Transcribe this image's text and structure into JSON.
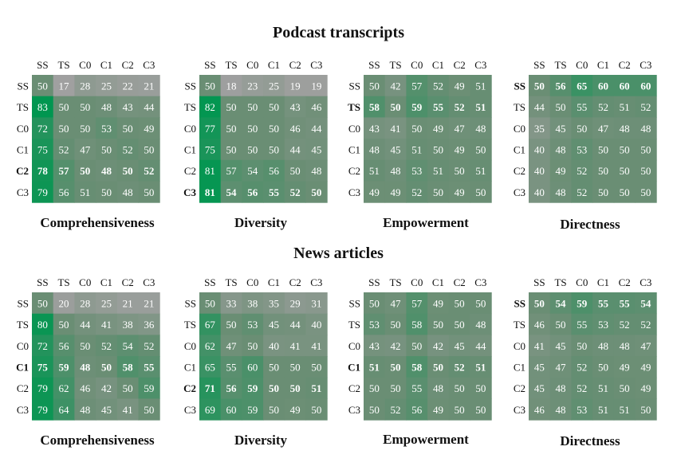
{
  "figure_title_top": "Podcast transcripts",
  "figure_title_bottom": "News articles",
  "chart_data": [
    {
      "type": "heatmap",
      "group": "Podcast transcripts",
      "title": "Comprehensiveness",
      "labels": [
        "SS",
        "TS",
        "C0",
        "C1",
        "C2",
        "C3"
      ],
      "values": [
        [
          50,
          17,
          28,
          25,
          22,
          21
        ],
        [
          83,
          50,
          50,
          48,
          43,
          44
        ],
        [
          72,
          50,
          50,
          53,
          50,
          49
        ],
        [
          75,
          52,
          47,
          50,
          52,
          50
        ],
        [
          78,
          57,
          50,
          48,
          50,
          52
        ],
        [
          79,
          56,
          51,
          50,
          48,
          50
        ]
      ],
      "bold_row": 4
    },
    {
      "type": "heatmap",
      "group": "Podcast transcripts",
      "title": "Diversity",
      "labels": [
        "SS",
        "TS",
        "C0",
        "C1",
        "C2",
        "C3"
      ],
      "values": [
        [
          50,
          18,
          23,
          25,
          19,
          19
        ],
        [
          82,
          50,
          50,
          50,
          43,
          46
        ],
        [
          77,
          50,
          50,
          50,
          46,
          44
        ],
        [
          75,
          50,
          50,
          50,
          44,
          45
        ],
        [
          81,
          57,
          54,
          56,
          50,
          48
        ],
        [
          81,
          54,
          56,
          55,
          52,
          50
        ]
      ],
      "bold_row": 5
    },
    {
      "type": "heatmap",
      "group": "Podcast transcripts",
      "title": "Empowerment",
      "labels": [
        "SS",
        "TS",
        "C0",
        "C1",
        "C2",
        "C3"
      ],
      "values": [
        [
          50,
          42,
          57,
          52,
          49,
          51
        ],
        [
          58,
          50,
          59,
          55,
          52,
          51
        ],
        [
          43,
          41,
          50,
          49,
          47,
          48
        ],
        [
          48,
          45,
          51,
          50,
          49,
          50
        ],
        [
          51,
          48,
          53,
          51,
          50,
          51
        ],
        [
          49,
          49,
          52,
          50,
          49,
          50
        ]
      ],
      "bold_row": 1
    },
    {
      "type": "heatmap",
      "group": "Podcast transcripts",
      "title": "Directness",
      "labels": [
        "SS",
        "TS",
        "C0",
        "C1",
        "C2",
        "C3"
      ],
      "values": [
        [
          50,
          56,
          65,
          60,
          60,
          60
        ],
        [
          44,
          50,
          55,
          52,
          51,
          52
        ],
        [
          35,
          45,
          50,
          47,
          48,
          48
        ],
        [
          40,
          48,
          53,
          50,
          50,
          50
        ],
        [
          40,
          49,
          52,
          50,
          50,
          50
        ],
        [
          40,
          48,
          52,
          50,
          50,
          50
        ]
      ],
      "bold_row": 0
    },
    {
      "type": "heatmap",
      "group": "News articles",
      "title": "Comprehensiveness",
      "labels": [
        "SS",
        "TS",
        "C0",
        "C1",
        "C2",
        "C3"
      ],
      "values": [
        [
          50,
          20,
          28,
          25,
          21,
          21
        ],
        [
          80,
          50,
          44,
          41,
          38,
          36
        ],
        [
          72,
          56,
          50,
          52,
          54,
          52
        ],
        [
          75,
          59,
          48,
          50,
          58,
          55
        ],
        [
          79,
          62,
          46,
          42,
          50,
          59
        ],
        [
          79,
          64,
          48,
          45,
          41,
          50
        ]
      ],
      "bold_row": 3
    },
    {
      "type": "heatmap",
      "group": "News articles",
      "title": "Diversity",
      "labels": [
        "SS",
        "TS",
        "C0",
        "C1",
        "C2",
        "C3"
      ],
      "values": [
        [
          50,
          33,
          38,
          35,
          29,
          31
        ],
        [
          67,
          50,
          53,
          45,
          44,
          40
        ],
        [
          62,
          47,
          50,
          40,
          41,
          41
        ],
        [
          65,
          55,
          60,
          50,
          50,
          50
        ],
        [
          71,
          56,
          59,
          50,
          50,
          51
        ],
        [
          69,
          60,
          59,
          50,
          49,
          50
        ]
      ],
      "bold_row": 4
    },
    {
      "type": "heatmap",
      "group": "News articles",
      "title": "Empowerment",
      "labels": [
        "SS",
        "TS",
        "C0",
        "C1",
        "C2",
        "C3"
      ],
      "values": [
        [
          50,
          47,
          57,
          49,
          50,
          50
        ],
        [
          53,
          50,
          58,
          50,
          50,
          48
        ],
        [
          43,
          42,
          50,
          42,
          45,
          44
        ],
        [
          51,
          50,
          58,
          50,
          52,
          51
        ],
        [
          50,
          50,
          55,
          48,
          50,
          50
        ],
        [
          50,
          52,
          56,
          49,
          50,
          50
        ]
      ],
      "bold_row": 3
    },
    {
      "type": "heatmap",
      "group": "News articles",
      "title": "Directness",
      "labels": [
        "SS",
        "TS",
        "C0",
        "C1",
        "C2",
        "C3"
      ],
      "values": [
        [
          50,
          54,
          59,
          55,
          55,
          54
        ],
        [
          46,
          50,
          55,
          53,
          52,
          52
        ],
        [
          41,
          45,
          50,
          48,
          48,
          47
        ],
        [
          45,
          47,
          52,
          50,
          49,
          49
        ],
        [
          45,
          48,
          52,
          51,
          50,
          49
        ],
        [
          46,
          48,
          53,
          51,
          51,
          50
        ]
      ],
      "bold_row": 0
    }
  ]
}
